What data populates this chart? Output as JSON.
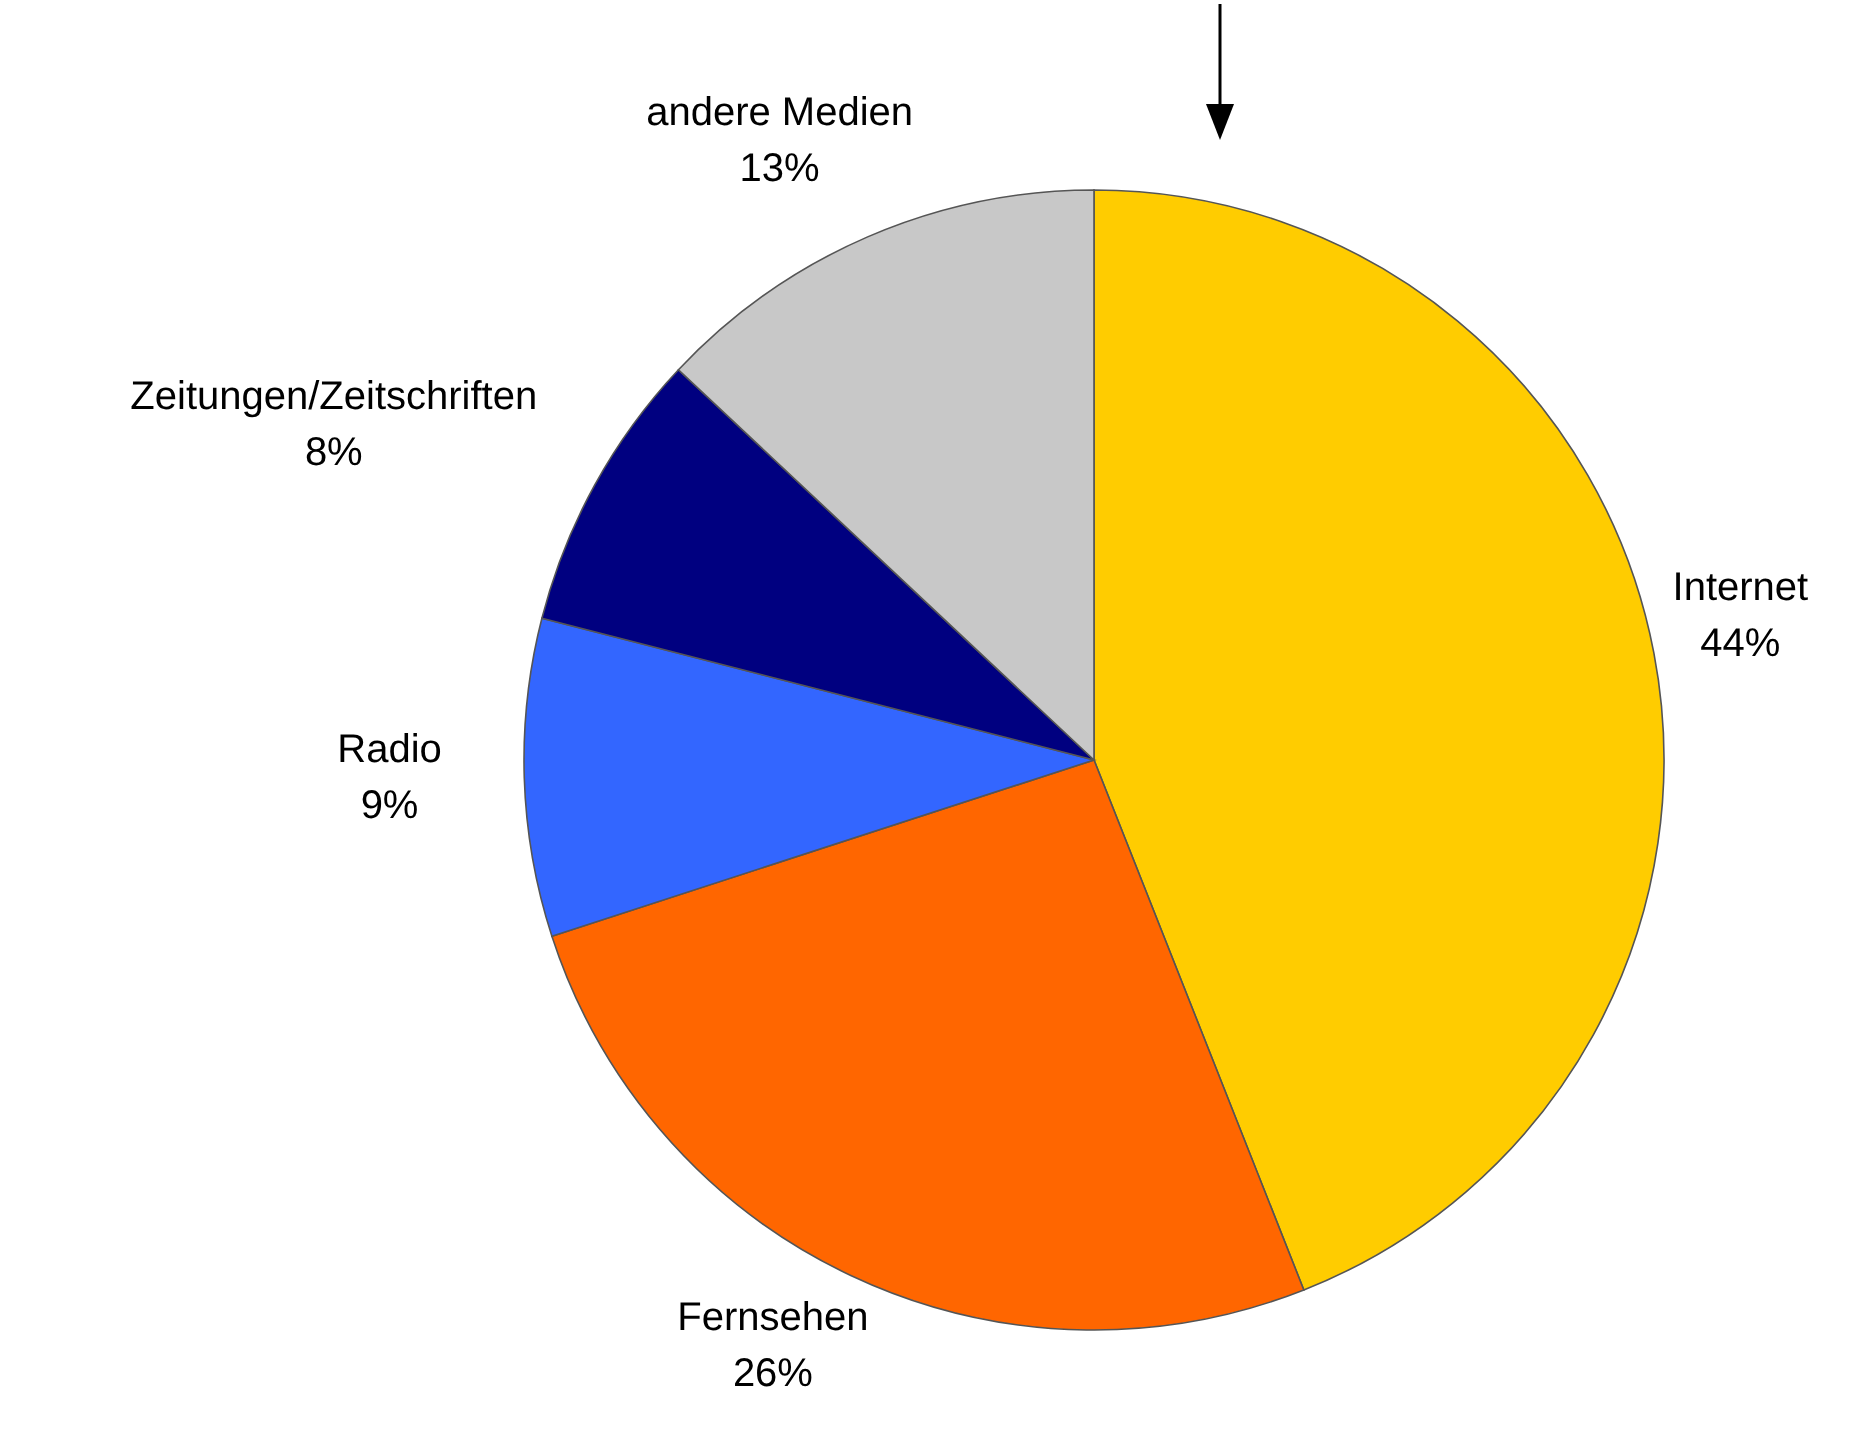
{
  "chart_data": {
    "type": "pie",
    "categories": [
      "Internet",
      "Fernsehen",
      "Radio",
      "Zeitungen/Zeitschriften",
      "andere Medien"
    ],
    "values": [
      44,
      26,
      9,
      8,
      13
    ],
    "colors": [
      "#ffcc00",
      "#ff6600",
      "#3366ff",
      "#000080",
      "#c8c8c8"
    ],
    "value_labels": [
      "44%",
      "26%",
      "9%",
      "8%",
      "13%"
    ],
    "legend": false
  }
}
